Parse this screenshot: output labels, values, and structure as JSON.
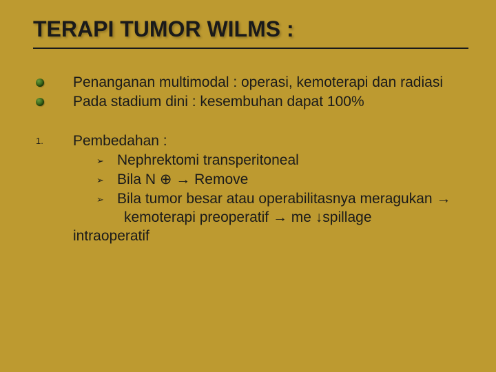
{
  "background_color": "#bd9a30",
  "text_color": "#1a1a1a",
  "title_fontsize": 32,
  "body_fontsize": 21,
  "sub_marker_fontsize": 13,
  "title": "TERAPI TUMOR WILMS :",
  "bullets": [
    "Penanganan multimodal : operasi, kemoterapi dan radiasi",
    "Pada stadium dini : kesembuhan dapat 100%"
  ],
  "numbered": {
    "marker": "1.",
    "heading": "Pembedahan :",
    "sub_marker": "➢",
    "items": [
      "Nephrektomi transperitoneal",
      "Bila N ⊕ → Remove",
      "Bila tumor besar atau operabilitasnya meragukan →"
    ],
    "continuation": " kemoterapi preoperatif → me ↓spillage",
    "final": "intraoperatif"
  }
}
